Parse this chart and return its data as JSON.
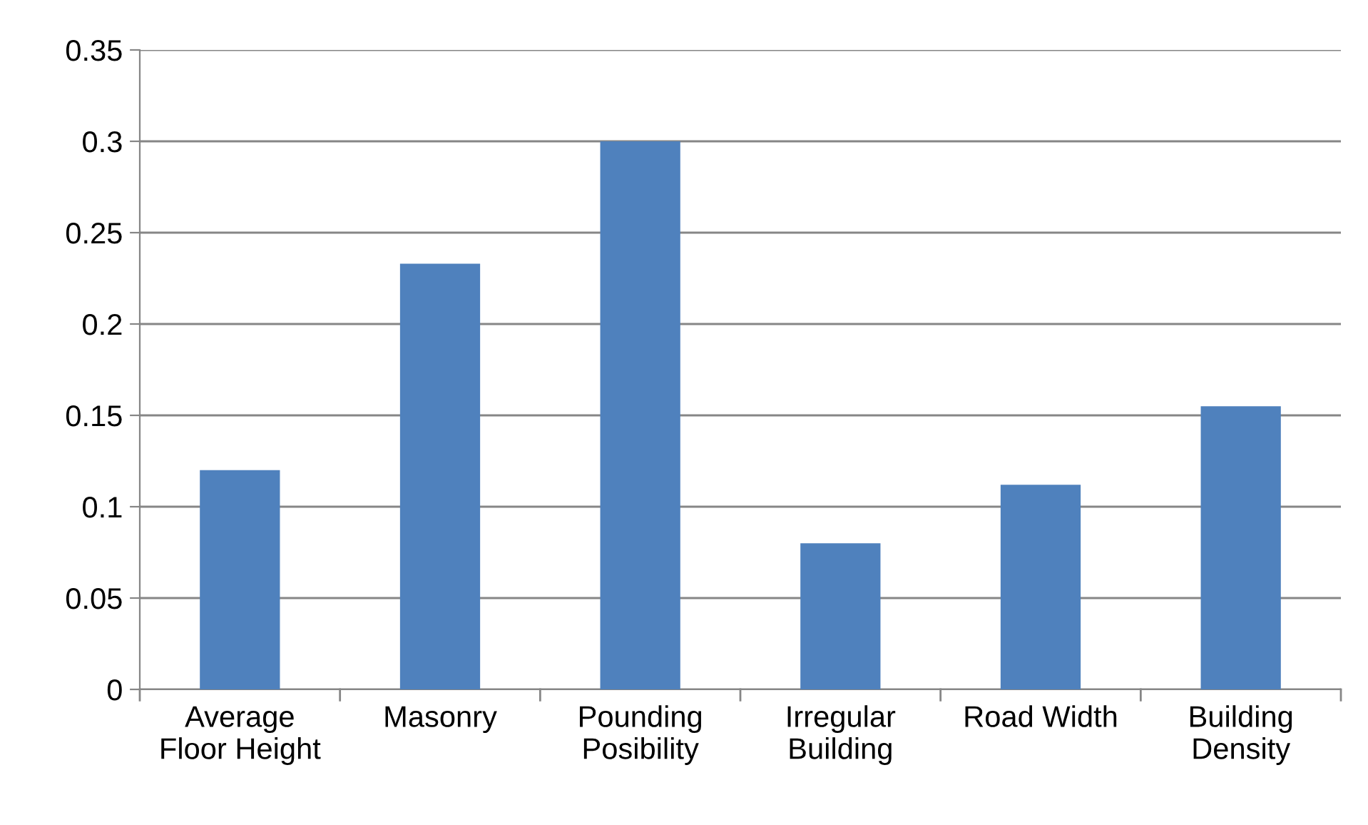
{
  "chart_data": {
    "type": "bar",
    "categories": [
      "Average Floor Height",
      "Masonry",
      "Pounding Posibility",
      "Irregular Building",
      "Road Width",
      "Building Density"
    ],
    "values": [
      0.12,
      0.233,
      0.3,
      0.08,
      0.112,
      0.155
    ],
    "color": "#4f81bd",
    "ylim": [
      0,
      0.35
    ],
    "yticks": [
      0,
      0.05,
      0.1,
      0.15,
      0.2,
      0.25,
      0.3,
      0.35
    ],
    "grid": "y"
  }
}
